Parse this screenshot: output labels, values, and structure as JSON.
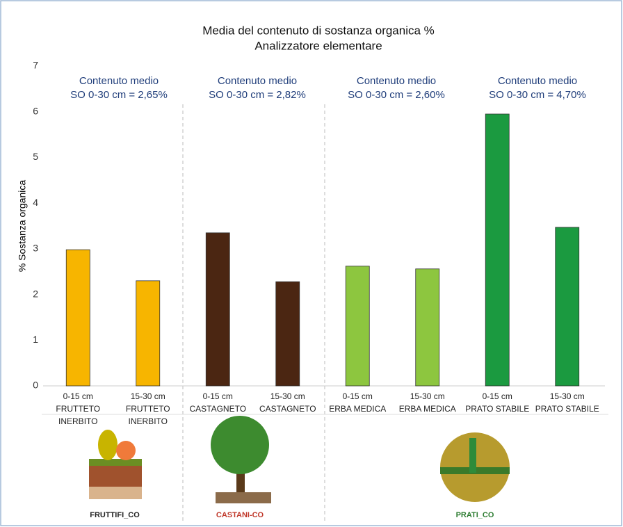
{
  "chart_data": {
    "type": "bar",
    "title": [
      "Media del contenuto di sostanza organica %",
      "Analizzatore elementare"
    ],
    "y_label": "% Sostanza organica",
    "categories": [
      [
        "0-15 cm",
        "FRUTTETO",
        "INERBITO"
      ],
      [
        "15-30 cm",
        "FRUTTETO",
        "INERBITO"
      ],
      [
        "0-15 cm",
        "CASTAGNETO"
      ],
      [
        "15-30 cm",
        "CASTAGNETO"
      ],
      [
        "0-15 cm",
        "ERBA MEDICA"
      ],
      [
        "15-30 cm",
        "ERBA MEDICA"
      ],
      [
        "0-15 cm",
        "PRATO STABILE"
      ],
      [
        "15-30 cm",
        "PRATO STABILE"
      ]
    ],
    "values": [
      2.98,
      2.3,
      3.35,
      2.28,
      2.62,
      2.56,
      5.95,
      3.47
    ],
    "colors": [
      "#f7b500",
      "#f7b500",
      "#4b2612",
      "#4b2612",
      "#8dc63f",
      "#8dc63f",
      "#1b9a40",
      "#1b9a40"
    ],
    "ylim": [
      0,
      7
    ],
    "yticks": [
      0,
      1,
      2,
      3,
      4,
      5,
      6,
      7
    ],
    "grid": false,
    "annotations": [
      [
        "Contenuto medio",
        "SO 0-30 cm = 2,65%"
      ],
      [
        "Contenuto medio",
        "SO 0-30 cm = 2,82%"
      ],
      [
        "Contenuto medio",
        "SO 0-30 cm = 2,60%"
      ],
      [
        "Contenuto medio",
        "SO 0-30 cm = 4,70%"
      ]
    ],
    "logos": [
      "FRUTTIFI_CO",
      "CASTANI-CO",
      "PRATI_CO"
    ]
  }
}
